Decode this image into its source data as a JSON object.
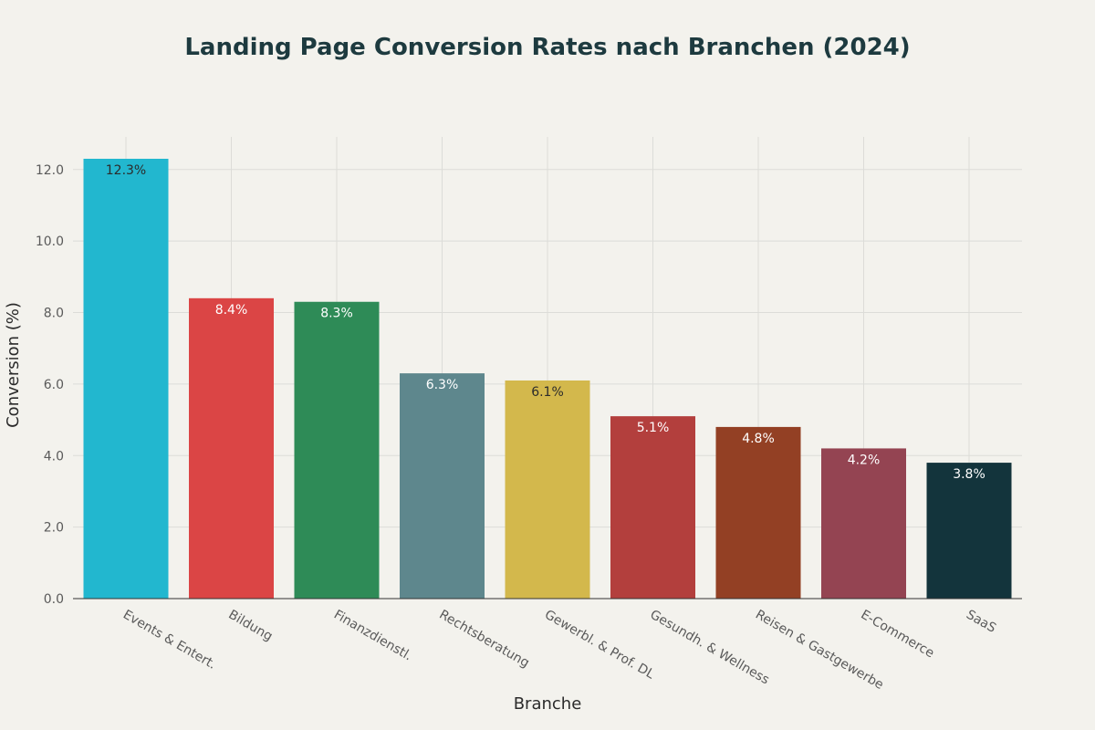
{
  "chart_data": {
    "type": "bar",
    "title": "Landing Page Conversion Rates nach Branchen (2024)",
    "xlabel": "Branche",
    "ylabel": "Conversion (%)",
    "ylim": [
      0,
      12.3
    ],
    "yticks": [
      0,
      2,
      4,
      6,
      8,
      10,
      12
    ],
    "ytick_labels": [
      "0.0",
      "2.0",
      "4.0",
      "6.0",
      "8.0",
      "10.0",
      "12.0"
    ],
    "grid": true,
    "categories": [
      "Events & Entert.",
      "Bildung",
      "Finanzdienstl.",
      "Rechtsberatung",
      "Gewerbl. & Prof. DL",
      "Gesundh. & Wellness",
      "Reisen & Gastgewerbe",
      "E-Commerce",
      "SaaS"
    ],
    "values": [
      12.3,
      8.4,
      8.3,
      6.3,
      6.1,
      5.1,
      4.8,
      4.2,
      3.8
    ],
    "data_labels": [
      "12.3%",
      "8.4%",
      "8.3%",
      "6.3%",
      "6.1%",
      "5.1%",
      "4.8%",
      "4.2%",
      "3.8%"
    ],
    "colors": [
      "#22b7cf",
      "#db4545",
      "#2e8b57",
      "#5e878d",
      "#d3b84c",
      "#b33f3d",
      "#934024",
      "#944452",
      "#13343c"
    ],
    "label_colors": [
      "#2b2b2b",
      "#ffffff",
      "#ffffff",
      "#ffffff",
      "#2b2b2b",
      "#ffffff",
      "#ffffff",
      "#ffffff",
      "#ffffff"
    ]
  }
}
